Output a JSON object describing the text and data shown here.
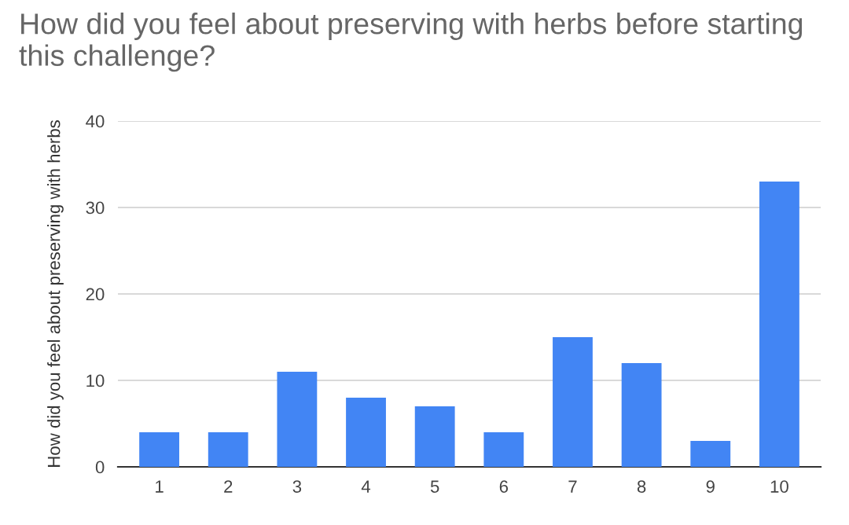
{
  "chart_data": {
    "type": "bar",
    "title": "How did you feel about preserving with herbs before starting this challenge?",
    "ylabel": "How did you feel about preserving with herbs",
    "categories": [
      "1",
      "2",
      "3",
      "4",
      "5",
      "6",
      "7",
      "8",
      "9",
      "10"
    ],
    "series": [
      {
        "color": "#4285f4",
        "values": [
          4,
          4,
          11,
          8,
          7,
          4,
          15,
          12,
          3,
          33
        ]
      }
    ],
    "ylim": [
      0,
      40
    ],
    "yticks": [
      0,
      10,
      20,
      30,
      40
    ],
    "grid": "y",
    "legend": false
  }
}
